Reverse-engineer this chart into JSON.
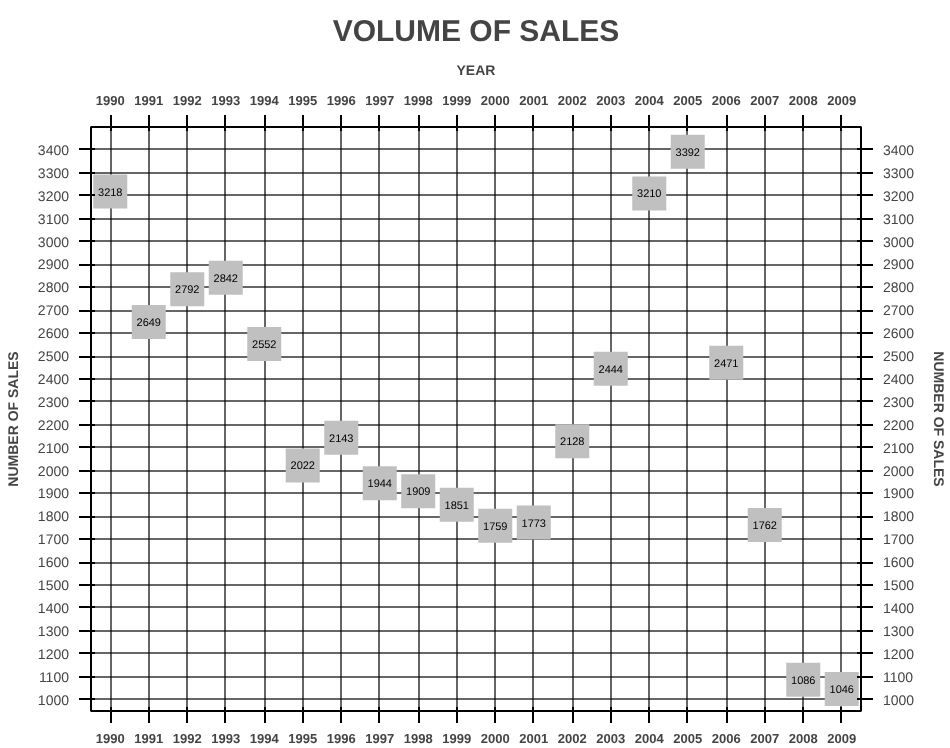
{
  "chart_data": {
    "type": "scatter",
    "title": "VOLUME OF SALES",
    "xlabel": "YEAR",
    "ylabel": "NUMBER OF SALES",
    "y2label": "NUMBER OF SALES",
    "categories": [
      "1990",
      "1991",
      "1992",
      "1993",
      "1994",
      "1995",
      "1996",
      "1997",
      "1998",
      "1999",
      "2000",
      "2001",
      "2002",
      "2003",
      "2004",
      "2005",
      "2006",
      "2007",
      "2008",
      "2009"
    ],
    "values": [
      3218,
      2649,
      2792,
      2842,
      2552,
      2022,
      2143,
      1944,
      1909,
      1851,
      1759,
      1773,
      2128,
      2444,
      3210,
      3392,
      2471,
      1762,
      1086,
      1046
    ],
    "color": "#c0c0c0",
    "marker": "square",
    "data_labels": true,
    "grid": true,
    "ylim": [
      950,
      3500
    ],
    "yticks": [
      1000,
      1100,
      1200,
      1300,
      1400,
      1500,
      1600,
      1700,
      1800,
      1900,
      2000,
      2100,
      2200,
      2300,
      2400,
      2500,
      2600,
      2700,
      2800,
      2900,
      3000,
      3100,
      3200,
      3300,
      3400
    ],
    "y2lim": [
      950,
      3500
    ],
    "y2ticks": [
      1000,
      1100,
      1200,
      1300,
      1400,
      1500,
      1600,
      1700,
      1800,
      1900,
      2000,
      2100,
      2200,
      2300,
      2400,
      2500,
      2600,
      2700,
      2800,
      2900,
      3000,
      3100,
      3200,
      3300,
      3400
    ]
  }
}
